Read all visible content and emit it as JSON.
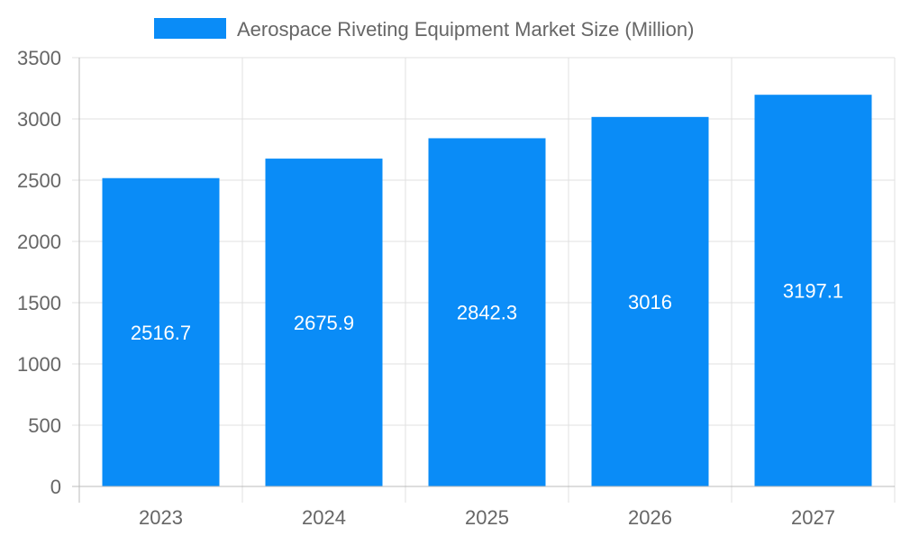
{
  "chart_data": {
    "type": "bar",
    "title": "",
    "xlabel": "",
    "ylabel": "",
    "categories": [
      "2023",
      "2024",
      "2025",
      "2026",
      "2027"
    ],
    "series": [
      {
        "name": "Aerospace Riveting Equipment Market Size (Million)",
        "values": [
          2516.7,
          2675.9,
          2842.3,
          3016,
          3197.1
        ],
        "color": "#0a8cf7"
      }
    ],
    "data_labels": [
      "2516.7",
      "2675.9",
      "2842.3",
      "3016",
      "3197.1"
    ],
    "ylim": [
      0,
      3500
    ],
    "yticks": [
      0,
      500,
      1000,
      1500,
      2000,
      2500,
      3000,
      3500
    ],
    "grid": true,
    "legend_position": "top"
  }
}
